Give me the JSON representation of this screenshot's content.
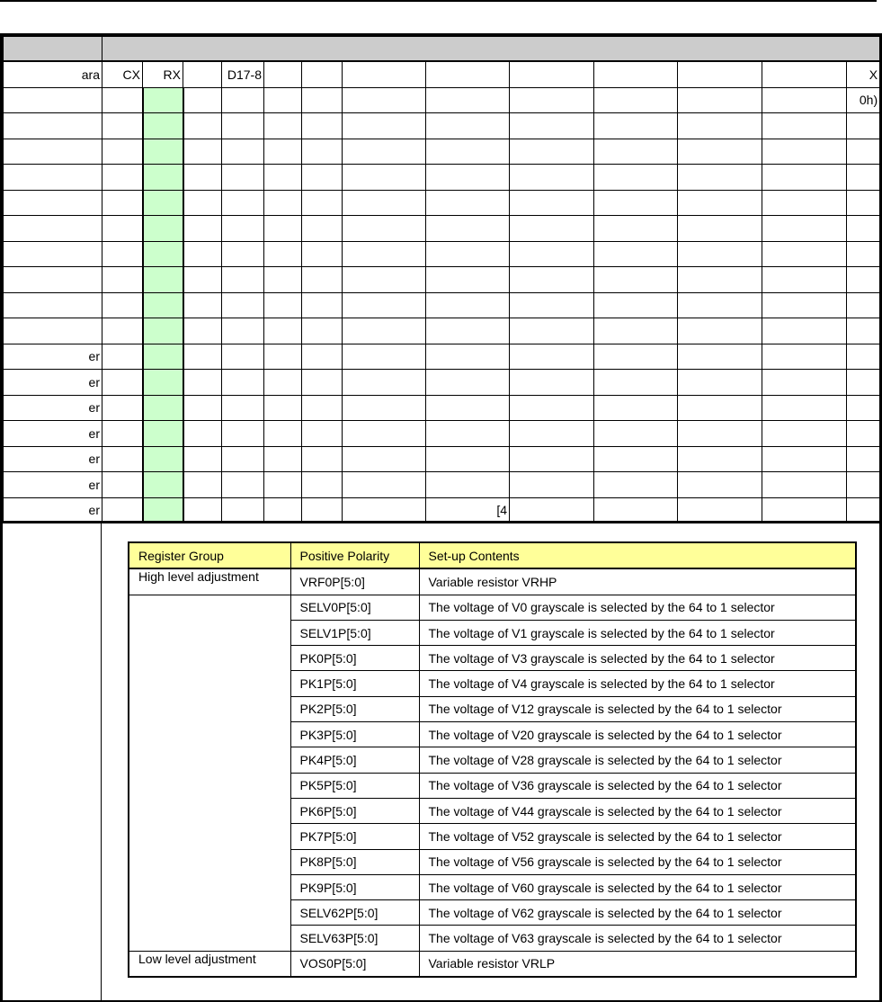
{
  "register_table": {
    "columns": [
      "ara",
      "CX",
      "RX",
      "",
      "D17-8",
      "",
      "",
      "",
      "",
      "",
      "",
      "",
      "",
      "X"
    ],
    "rows": [
      [
        "",
        "",
        "",
        "",
        "",
        "",
        "",
        "",
        "",
        "",
        "",
        "",
        "",
        "0h)"
      ],
      [
        "",
        "",
        "",
        "",
        "",
        "",
        "",
        "",
        "",
        "",
        "",
        "",
        "",
        ""
      ],
      [
        "",
        "",
        "",
        "",
        "",
        "",
        "",
        "",
        "",
        "",
        "",
        "",
        "",
        ""
      ],
      [
        "",
        "",
        "",
        "",
        "",
        "",
        "",
        "",
        "",
        "",
        "",
        "",
        "",
        ""
      ],
      [
        "",
        "",
        "",
        "",
        "",
        "",
        "",
        "",
        "",
        "",
        "",
        "",
        "",
        ""
      ],
      [
        "",
        "",
        "",
        "",
        "",
        "",
        "",
        "",
        "",
        "",
        "",
        "",
        "",
        ""
      ],
      [
        "",
        "",
        "",
        "",
        "",
        "",
        "",
        "",
        "",
        "",
        "",
        "",
        "",
        ""
      ],
      [
        "",
        "",
        "",
        "",
        "",
        "",
        "",
        "",
        "",
        "",
        "",
        "",
        "",
        ""
      ],
      [
        "",
        "",
        "",
        "",
        "",
        "",
        "",
        "",
        "",
        "",
        "",
        "",
        "",
        ""
      ],
      [
        "",
        "",
        "",
        "",
        "",
        "",
        "",
        "",
        "",
        "",
        "",
        "",
        "",
        ""
      ],
      [
        "er",
        "",
        "",
        "",
        "",
        "",
        "",
        "",
        "",
        "",
        "",
        "",
        "",
        ""
      ],
      [
        "er",
        "",
        "",
        "",
        "",
        "",
        "",
        "",
        "",
        "",
        "",
        "",
        "",
        ""
      ],
      [
        "er",
        "",
        "",
        "",
        "",
        "",
        "",
        "",
        "",
        "",
        "",
        "",
        "",
        ""
      ],
      [
        "er",
        "",
        "",
        "",
        "",
        "",
        "",
        "",
        "",
        "",
        "",
        "",
        "",
        ""
      ],
      [
        "er",
        "",
        "",
        "",
        "",
        "",
        "",
        "",
        "",
        "",
        "",
        "",
        "",
        ""
      ],
      [
        "er",
        "",
        "",
        "",
        "",
        "",
        "",
        "",
        "",
        "",
        "",
        "",
        "",
        ""
      ],
      [
        "er",
        "",
        "",
        "",
        "",
        "",
        "",
        "",
        "[4",
        "",
        "",
        "",
        "",
        ""
      ]
    ],
    "highlight_color": "#ccffcc",
    "header_color": "#cccccc"
  },
  "setup_table": {
    "headers": [
      "Register Group",
      "Positive Polarity",
      "Set-up Contents"
    ],
    "header_color": "#ffff99",
    "groups": [
      {
        "label": "High level adjustment",
        "rows": [
          [
            "VRF0P[5:0]",
            "Variable resistor VRHP"
          ]
        ]
      },
      {
        "label": "",
        "rows": [
          [
            "SELV0P[5:0]",
            "The voltage of V0 grayscale is selected by the 64 to 1 selector"
          ],
          [
            "SELV1P[5:0]",
            "The voltage of V1 grayscale is selected by the 64 to 1 selector"
          ],
          [
            "PK0P[5:0]",
            "The voltage of V3 grayscale is selected by the 64 to 1 selector"
          ],
          [
            "PK1P[5:0]",
            "The voltage of V4 grayscale is selected by the 64 to 1 selector"
          ],
          [
            "PK2P[5:0]",
            "The voltage of V12 grayscale is selected by the 64 to 1 selector"
          ],
          [
            "PK3P[5:0]",
            "The voltage of V20 grayscale is selected by the 64 to 1 selector"
          ],
          [
            "PK4P[5:0]",
            "The voltage of V28 grayscale is selected by the 64 to 1 selector"
          ],
          [
            "PK5P[5:0]",
            "The voltage of V36 grayscale is selected by the 64 to 1 selector"
          ],
          [
            "PK6P[5:0]",
            "The voltage of V44 grayscale is selected by the 64 to 1 selector"
          ],
          [
            "PK7P[5:0]",
            "The voltage of V52 grayscale is selected by the 64 to 1 selector"
          ],
          [
            "PK8P[5:0]",
            "The voltage of V56 grayscale is selected by the 64 to 1 selector"
          ],
          [
            "PK9P[5:0]",
            "The voltage of V60 grayscale is selected by the 64 to 1 selector"
          ],
          [
            "SELV62P[5:0]",
            "The voltage of V62 grayscale is selected by the 64 to 1 selector"
          ],
          [
            "SELV63P[5:0]",
            "The voltage of V63 grayscale is selected by the 64 to 1 selector"
          ]
        ]
      },
      {
        "label": "Low level adjustment",
        "rows": [
          [
            "VOS0P[5:0]",
            "Variable resistor VRLP"
          ]
        ]
      }
    ]
  }
}
